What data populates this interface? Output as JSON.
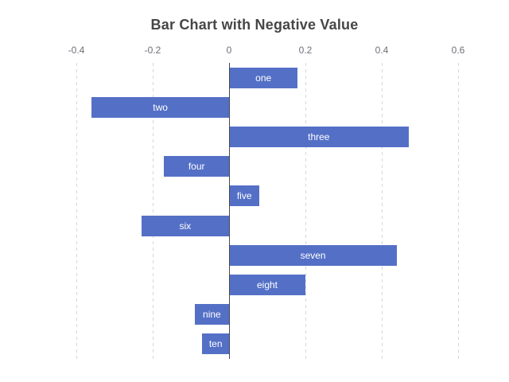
{
  "chart_data": {
    "type": "bar",
    "orientation": "horizontal",
    "title": "Bar Chart with Negative Value",
    "categories": [
      "one",
      "two",
      "three",
      "four",
      "five",
      "six",
      "seven",
      "eight",
      "nine",
      "ten"
    ],
    "values": [
      0.18,
      -0.36,
      0.47,
      -0.17,
      0.08,
      -0.23,
      0.44,
      0.2,
      -0.09,
      -0.07
    ],
    "bar_label_source": "category",
    "x_axis": {
      "position": "top",
      "range": [
        -0.45,
        0.65
      ],
      "ticks": [
        {
          "value": -0.4,
          "label": "-0.4"
        },
        {
          "value": -0.2,
          "label": "-0.2"
        },
        {
          "value": 0,
          "label": "0"
        },
        {
          "value": 0.2,
          "label": "0.2"
        },
        {
          "value": 0.4,
          "label": "0.4"
        },
        {
          "value": 0.6,
          "label": "0.6"
        }
      ]
    },
    "y_axis": {
      "labels_shown": false
    },
    "grid": "on",
    "grid_line_style": "dashed",
    "legend": "none"
  },
  "colors": {
    "background": "#ffffff",
    "title": "#464646",
    "axis_label": "#6E7079",
    "grid_line": "#d4d7de",
    "zero_line": "#47474d",
    "bar": "#5470C6",
    "bar_label": "#ffffff"
  }
}
